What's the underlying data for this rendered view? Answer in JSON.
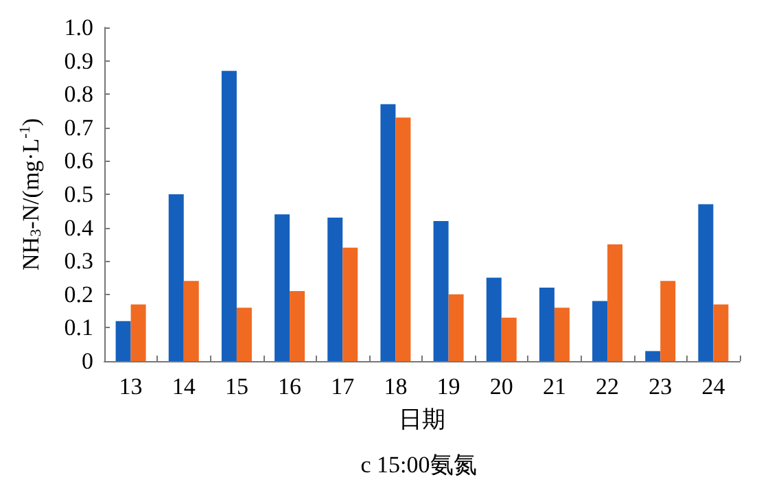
{
  "chart_data": {
    "type": "bar",
    "title": "c 15:00氨氮",
    "xlabel": "日期",
    "ylabel": "NH$_{3}$-N/(mg·L$^{-1}$)",
    "categories": [
      "13",
      "14",
      "15",
      "16",
      "17",
      "18",
      "19",
      "20",
      "21",
      "22",
      "23",
      "24"
    ],
    "series": [
      {
        "color": "#1560bd",
        "values": [
          0.12,
          0.5,
          0.87,
          0.44,
          0.43,
          0.77,
          0.42,
          0.25,
          0.22,
          0.18,
          0.03,
          0.47
        ]
      },
      {
        "color": "#f06a22",
        "values": [
          0.17,
          0.24,
          0.16,
          0.21,
          0.34,
          0.73,
          0.2,
          0.13,
          0.16,
          0.35,
          0.24,
          0.17
        ]
      }
    ],
    "ylim": [
      0,
      1.0
    ],
    "yticks": [
      "0",
      0.1,
      0.2,
      0.3,
      0.4,
      0.5,
      0.6,
      0.7,
      0.8,
      0.9,
      "1.0"
    ],
    "grid": false
  }
}
